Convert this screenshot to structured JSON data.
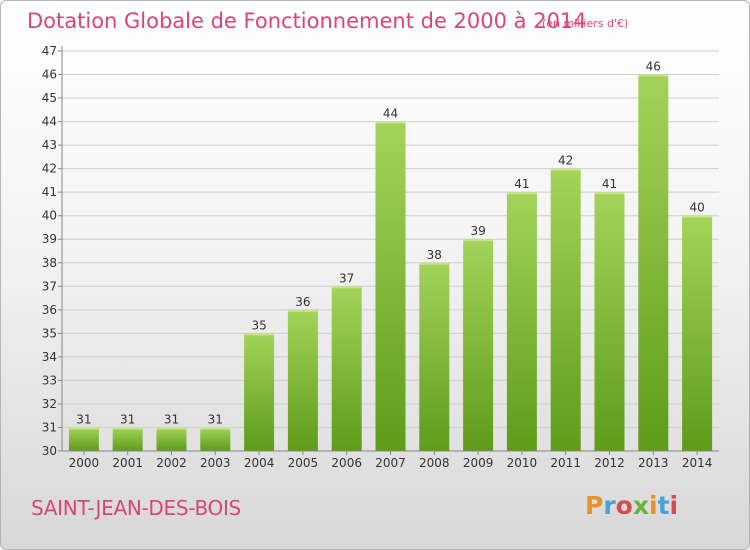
{
  "header": {
    "title": "Dotation Globale de Fonctionnement de 2000 à 2014",
    "unit": "(en milliers d'€)"
  },
  "footer": {
    "commune": "SAINT-JEAN-DES-BOIS",
    "brand": "Proxiti",
    "brand_colors": [
      "#e8922a",
      "#4aa0d8",
      "#d94a4a",
      "#6ab33c",
      "#e8922a",
      "#4aa0d8",
      "#d94a4a"
    ]
  },
  "colors": {
    "title": "#d9457a",
    "bar_top": "#a4d35a",
    "bar_bottom": "#5e9c1a",
    "grid": "#d0d0d0",
    "axis_text": "#333333"
  },
  "chart_data": {
    "type": "bar",
    "categories": [
      "2000",
      "2001",
      "2002",
      "2003",
      "2004",
      "2005",
      "2006",
      "2007",
      "2008",
      "2009",
      "2010",
      "2011",
      "2012",
      "2013",
      "2014"
    ],
    "values": [
      31,
      31,
      31,
      31,
      35,
      36,
      37,
      44,
      38,
      39,
      41,
      42,
      41,
      46,
      40
    ],
    "ylim": [
      30,
      47
    ],
    "yticks": [
      30,
      31,
      32,
      33,
      34,
      35,
      36,
      37,
      38,
      39,
      40,
      41,
      42,
      43,
      44,
      45,
      46,
      47
    ],
    "grid": true,
    "title": "Dotation Globale de Fonctionnement de 2000 à 2014",
    "xlabel": "",
    "ylabel": ""
  }
}
